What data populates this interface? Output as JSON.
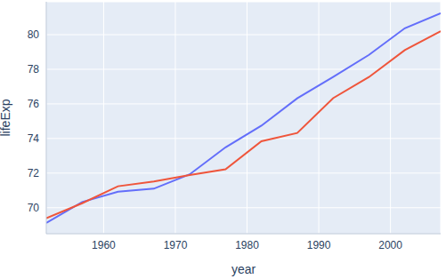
{
  "chart_data": {
    "type": "line",
    "x_label": "year",
    "y_label": "lifeExp",
    "x": [
      1952,
      1957,
      1962,
      1967,
      1972,
      1977,
      1982,
      1987,
      1992,
      1997,
      2002,
      2007
    ],
    "series": [
      {
        "color": "#636efa",
        "values": [
          69.12,
          70.33,
          70.93,
          71.1,
          71.93,
          73.49,
          74.74,
          76.32,
          77.56,
          78.83,
          80.37,
          81.235
        ]
      },
      {
        "color": "#ef553b",
        "values": [
          69.39,
          70.26,
          71.24,
          71.52,
          71.89,
          72.22,
          73.84,
          74.32,
          76.33,
          77.55,
          79.11,
          80.204
        ]
      }
    ],
    "xlim": [
      1952,
      2007
    ],
    "xticks": [
      1960,
      1970,
      1980,
      1990,
      2000
    ],
    "ylim": [
      68.5,
      81.9
    ],
    "yticks": [
      70,
      72,
      74,
      76,
      78,
      80
    ],
    "grid": true
  }
}
